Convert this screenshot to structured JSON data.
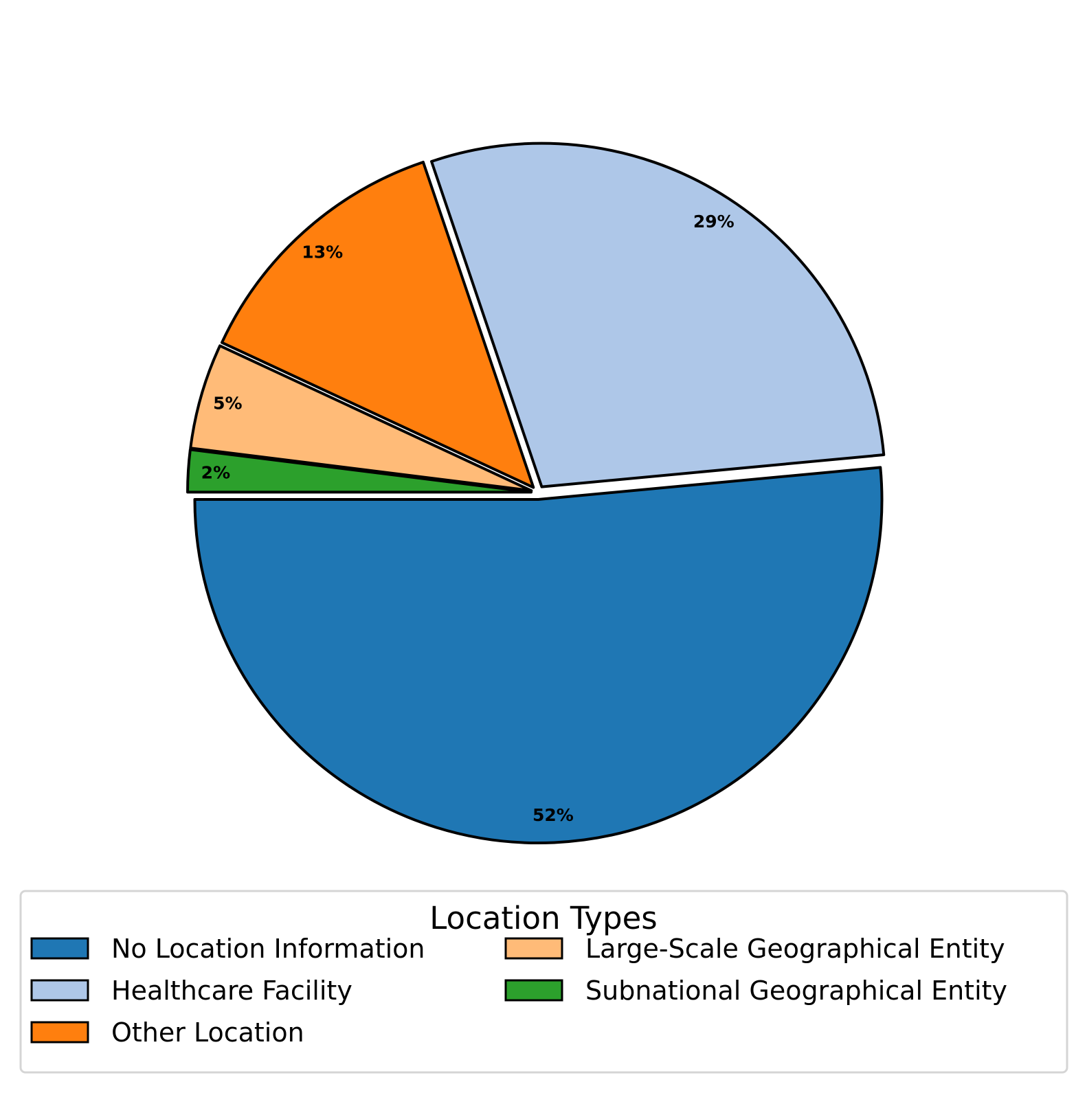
{
  "chart_data": {
    "type": "pie",
    "title": "",
    "categories": [
      "No Location Information",
      "Healthcare Facility",
      "Other Location",
      "Large-Scale Geographical Entity",
      "Subnational Geographical Entity"
    ],
    "values": [
      52,
      29,
      13,
      5,
      2
    ],
    "value_labels": [
      "52%",
      "29%",
      "13%",
      "5%",
      "2%"
    ],
    "colors": [
      "#1f77b4",
      "#aec7e8",
      "#ff7f0e",
      "#ffbb78",
      "#2ca02c"
    ],
    "exploded": true,
    "legend": {
      "title": "Location Types",
      "placement": "bottom"
    }
  }
}
